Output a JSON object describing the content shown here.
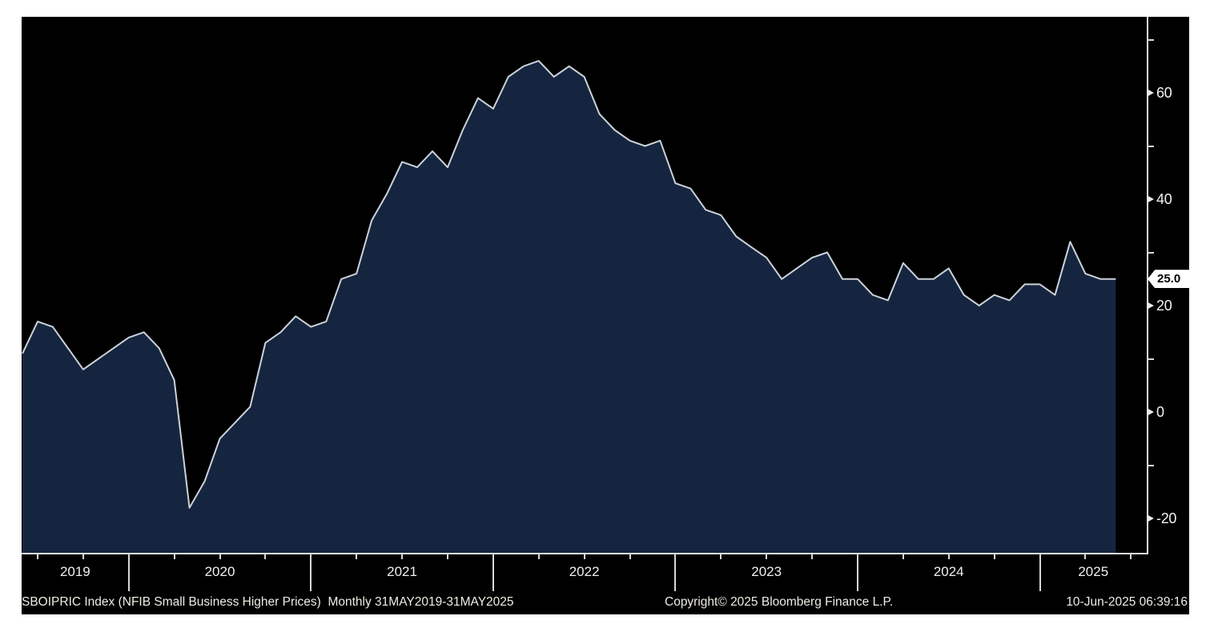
{
  "panel": {
    "background": "#000000",
    "page_background": "#ffffff"
  },
  "last_value_label": "25.0",
  "footer": {
    "instrument": "SBOIPRIC Index (NFIB Small Business Higher Prices)",
    "periodicity": "Monthly 31MAY2019-31MAY2025",
    "copyright": "Copyright© 2025 Bloomberg Finance L.P.",
    "timestamp": "10-Jun-2025 06:39:16"
  },
  "chart_data": {
    "type": "area",
    "title": "SBOIPRIC Index (NFIB Small Business Higher Prices)",
    "xlabel": "",
    "ylabel": "",
    "grid": false,
    "legend_position": "none",
    "ylim": [
      -26,
      71
    ],
    "y_major_ticks": [
      60,
      40,
      20,
      0,
      -20
    ],
    "y_minor_ticks": [
      70,
      50,
      30,
      10,
      -10
    ],
    "x_year_labels": [
      "2019",
      "2020",
      "2021",
      "2022",
      "2023",
      "2024",
      "2025"
    ],
    "last_value": 25.0,
    "colors": {
      "fill": "#16253f",
      "line": "#ccd2da",
      "background": "#000000",
      "axis": "#e2e2e2",
      "badge_bg": "#ffffff",
      "badge_text": "#000000"
    },
    "x": [
      "May 2019",
      "Jun 2019",
      "Jul 2019",
      "Aug 2019",
      "Sep 2019",
      "Oct 2019",
      "Nov 2019",
      "Dec 2019",
      "Jan 2020",
      "Feb 2020",
      "Mar 2020",
      "Apr 2020",
      "May 2020",
      "Jun 2020",
      "Jul 2020",
      "Aug 2020",
      "Sep 2020",
      "Oct 2020",
      "Nov 2020",
      "Dec 2020",
      "Jan 2021",
      "Feb 2021",
      "Mar 2021",
      "Apr 2021",
      "May 2021",
      "Jun 2021",
      "Jul 2021",
      "Aug 2021",
      "Sep 2021",
      "Oct 2021",
      "Nov 2021",
      "Dec 2021",
      "Jan 2022",
      "Feb 2022",
      "Mar 2022",
      "Apr 2022",
      "May 2022",
      "Jun 2022",
      "Jul 2022",
      "Aug 2022",
      "Sep 2022",
      "Oct 2022",
      "Nov 2022",
      "Dec 2022",
      "Jan 2023",
      "Feb 2023",
      "Mar 2023",
      "Apr 2023",
      "May 2023",
      "Jun 2023",
      "Jul 2023",
      "Aug 2023",
      "Sep 2023",
      "Oct 2023",
      "Nov 2023",
      "Dec 2023",
      "Jan 2024",
      "Feb 2024",
      "Mar 2024",
      "Apr 2024",
      "May 2024",
      "Jun 2024",
      "Jul 2024",
      "Aug 2024",
      "Sep 2024",
      "Oct 2024",
      "Nov 2024",
      "Dec 2024",
      "Jan 2025",
      "Feb 2025",
      "Mar 2025",
      "Apr 2025",
      "May 2025"
    ],
    "values": [
      11,
      17,
      16,
      12,
      8,
      10,
      12,
      14,
      15,
      12,
      6,
      -18,
      -13,
      -5,
      -2,
      1,
      13,
      15,
      18,
      16,
      17,
      25,
      26,
      36,
      41,
      47,
      46,
      49,
      46,
      53,
      59,
      57,
      63,
      65,
      66,
      63,
      65,
      63,
      56,
      53,
      51,
      50,
      51,
      43,
      42,
      38,
      37,
      33,
      31,
      29,
      25,
      27,
      29,
      30,
      25,
      25,
      22,
      21,
      28,
      25,
      25,
      27,
      22,
      20,
      22,
      21,
      24,
      24,
      22,
      32,
      26,
      25,
      25
    ]
  }
}
